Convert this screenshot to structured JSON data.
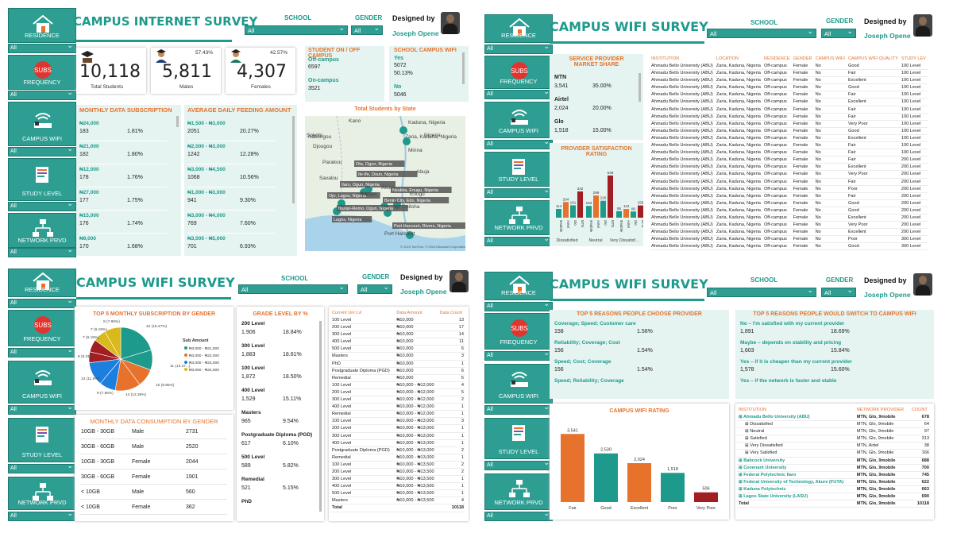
{
  "common": {
    "designer_label": "Designed by",
    "designer_name": "Joseph Opene",
    "school_label": "SCHOOL",
    "gender_label": "GENDER",
    "all": "All",
    "nav": [
      "RESIDENCE",
      "FREQUENCY",
      "CAMPUS WIFI",
      "STUDY LEVEL",
      "NETWORK PRVD"
    ]
  },
  "colors": {
    "teal": "#2e9e93",
    "orange": "#e6722c",
    "dark_red": "#a31e22"
  },
  "p1": {
    "title": "CAMPUS INTERNET SURVEY",
    "kpi": [
      {
        "value": "10,118",
        "label": "Total Students",
        "pct": ""
      },
      {
        "value": "5,811",
        "label": "Males",
        "pct": "57.43%"
      },
      {
        "value": "4,307",
        "label": "Females",
        "pct": "42.57%"
      }
    ],
    "oncampus": {
      "title": "STUDENT ON / OFF CAMPUS",
      "off_label": "Off-campus",
      "off_value": "6597",
      "on_label": "On-campus",
      "on_value": "3521"
    },
    "wifi": {
      "title": "SCHOOL CAMPUS WIFI",
      "yes_label": "Yes",
      "yes_value": "5072",
      "yes_pct": "50.13%",
      "no_label": "No",
      "no_value": "5046"
    },
    "monthly": {
      "title": "MONTHLY DATA SUBSCRIPTION",
      "rows": [
        [
          "₦24,000",
          "183",
          "1.81%"
        ],
        [
          "₦21,000",
          "182",
          "1.80%"
        ],
        [
          "₦12,000",
          "178",
          "1.76%"
        ],
        [
          "₦27,000",
          "177",
          "1.75%"
        ],
        [
          "₦15,000",
          "176",
          "1.74%"
        ],
        [
          "₦9,000",
          "170",
          "1.68%"
        ]
      ]
    },
    "feeding": {
      "title": "AVERAGE DAILY FEEDING AMOUNT",
      "rows": [
        [
          "₦1,500 - ₦3,000",
          "2051",
          "20.27%"
        ],
        [
          "₦2,000 - ₦3,000",
          "1242",
          "12.28%"
        ],
        [
          "₦3,000 - ₦4,500",
          "1068",
          "10.56%"
        ],
        [
          "₦1,000 - ₦3,000",
          "941",
          "9.30%"
        ],
        [
          "₦3,000 - ₦4,000",
          "769",
          "7.60%"
        ],
        [
          "₦3,000 - ₦5,000",
          "701",
          "6.93%"
        ]
      ]
    },
    "map": {
      "title": "Total Students by State",
      "places": [
        "Kano",
        "Kaduna, Nigeria",
        "Zaria, Kaduna, Nigeria",
        "Minna",
        "Abuja",
        "Ota, Ogun, Nigeria",
        "Ile-Ife, Osun, Nigeria",
        "Ilaro, Ogun, Nigeria",
        "Ojo, Lagos, Nigeria",
        "Akure",
        "Nsukka, Enugu, Nigeria",
        "Enugu",
        "Benin City, Edo, Nigeria",
        "Onitsha",
        "Iburan-Remo, Ogun, Nigeria",
        "Lagos, Nigeria",
        "Port Harcourt, Rivers, Nigeria",
        "Port Harcourt",
        "Sokoto",
        "Natitingou",
        "Djougou",
        "Parakou",
        "Savalou",
        "Ibadan",
        "Nigeria"
      ],
      "credit": "© 2024 TomTom, © 2024 Microsoft Corporation"
    }
  },
  "p2": {
    "title": "CAMPUS WIFI SURVEY",
    "share": {
      "title": "SERVICE PROVIDER MARKET SHARE",
      "rows": [
        [
          "MTN",
          "3,541",
          "35.00%"
        ],
        [
          "Airtel",
          "2,024",
          "20.00%"
        ],
        [
          "Glo",
          "1,518",
          "15.00%"
        ]
      ]
    },
    "sat": {
      "title": "PROVIDER SATISFACTION RATING",
      "groups": [
        "Dissatisfied",
        "Neutral",
        "Very Dissatisf..."
      ]
    },
    "table": {
      "headers": [
        "INSTITUTION",
        "LOCATION",
        "RESIDENCE",
        "GENDER",
        "CAMPUS WIFI",
        "CAMPUS WIFI QUALITY",
        "STUDY LEV"
      ],
      "inst": "Ahmadu Bello University (ABU)",
      "loc": "Zaria, Kaduna, Nigeria",
      "rows": [
        [
          "Off-campus",
          "Female",
          "No",
          "Good",
          "100 Level"
        ],
        [
          "Off-campus",
          "Female",
          "No",
          "Fair",
          "100 Level"
        ],
        [
          "Off-campus",
          "Female",
          "No",
          "Excellent",
          "100 Level"
        ],
        [
          "Off-campus",
          "Female",
          "No",
          "Good",
          "100 Level"
        ],
        [
          "Off-campus",
          "Female",
          "No",
          "Fair",
          "100 Level"
        ],
        [
          "Off-campus",
          "Female",
          "No",
          "Excellent",
          "100 Level"
        ],
        [
          "Off-campus",
          "Female",
          "No",
          "Fair",
          "100 Level"
        ],
        [
          "Off-campus",
          "Female",
          "No",
          "Fair",
          "100 Level"
        ],
        [
          "Off-campus",
          "Female",
          "No",
          "Very Poor",
          "100 Level"
        ],
        [
          "Off-campus",
          "Female",
          "No",
          "Good",
          "100 Level"
        ],
        [
          "Off-campus",
          "Female",
          "No",
          "Excellent",
          "100 Level"
        ],
        [
          "Off-campus",
          "Female",
          "No",
          "Fair",
          "100 Level"
        ],
        [
          "Off-campus",
          "Female",
          "No",
          "Fair",
          "100 Level"
        ],
        [
          "Off-campus",
          "Female",
          "No",
          "Fair",
          "200 Level"
        ],
        [
          "Off-campus",
          "Female",
          "No",
          "Excellent",
          "200 Level"
        ],
        [
          "Off-campus",
          "Female",
          "No",
          "Very Poor",
          "200 Level"
        ],
        [
          "Off-campus",
          "Female",
          "No",
          "Fair",
          "200 Level"
        ],
        [
          "Off-campus",
          "Female",
          "No",
          "Poor",
          "200 Level"
        ],
        [
          "Off-campus",
          "Female",
          "No",
          "Fair",
          "200 Level"
        ],
        [
          "Off-campus",
          "Female",
          "No",
          "Good",
          "200 Level"
        ],
        [
          "Off-campus",
          "Female",
          "No",
          "Good",
          "200 Level"
        ],
        [
          "Off-campus",
          "Female",
          "No",
          "Excellent",
          "200 Level"
        ],
        [
          "Off-campus",
          "Female",
          "No",
          "Very Poor",
          "200 Level"
        ],
        [
          "Off-campus",
          "Female",
          "No",
          "Excellent",
          "200 Level"
        ],
        [
          "Off-campus",
          "Female",
          "No",
          "Poor",
          "300 Level"
        ],
        [
          "Off-campus",
          "Female",
          "No",
          "Good",
          "300 Level"
        ]
      ]
    }
  },
  "p3": {
    "title": "CAMPUS WIFI SURVEY",
    "pie": {
      "title": "TOP 5 MONTHLY SUBSCRIPTION BY GENDER",
      "legend_title": "Sub Amount",
      "legend": [
        "₦3,000 - ₦21,000",
        "₦3,000 - ₦22,000",
        "₦3,000 - ₦23,000",
        "₦3,000 - ₦24,000"
      ],
      "labels": [
        "9 (7.96%)",
        "7 (6.19%)",
        "7 (6.19%)",
        "22 (19.47%)",
        "11 (13.27...)",
        "10 (8.85%)",
        "14 (12.39%)",
        "9 (7.96%)",
        "13 (11.5%)",
        "6 (5.31%)"
      ]
    },
    "consume": {
      "title": "MONTHLY DATA CONSUMPTION BY GENDER",
      "rows": [
        [
          "10GB - 30GB",
          "Male",
          "2731"
        ],
        [
          "30GB - 60GB",
          "Male",
          "2520"
        ],
        [
          "10GB - 30GB",
          "Female",
          "2044"
        ],
        [
          "30GB - 60GB",
          "Female",
          "1901"
        ],
        [
          "< 10GB",
          "Male",
          "560"
        ],
        [
          "< 10GB",
          "Female",
          "362"
        ]
      ]
    },
    "grade": {
      "title": "GRADE LEVEL BY %",
      "rows": [
        [
          "200 Level",
          "1,906",
          "18.84%"
        ],
        [
          "300 Level",
          "1,883",
          "18.61%"
        ],
        [
          "100 Level",
          "1,872",
          "18.50%"
        ],
        [
          "400 Level",
          "1,529",
          "15.11%"
        ],
        [
          "Masters",
          "965",
          "9.54%"
        ],
        [
          "Postgraduate Diploma (PGD)",
          "617",
          "6.10%"
        ],
        [
          "500 Level",
          "589",
          "5.82%"
        ],
        [
          "Remedial",
          "521",
          "5.15%"
        ],
        [
          "PhD",
          "",
          ""
        ]
      ]
    },
    "table": {
      "headers": [
        "Current Uni Lvl",
        "Data Amount",
        "Data Count"
      ],
      "rows": [
        [
          "100 Level",
          "₦10,000",
          "13"
        ],
        [
          "200 Level",
          "₦10,000",
          "17"
        ],
        [
          "300 Level",
          "₦10,000",
          "14"
        ],
        [
          "400 Level",
          "₦10,000",
          "11"
        ],
        [
          "500 Level",
          "₦10,000",
          "6"
        ],
        [
          "Masters",
          "₦10,000",
          "3"
        ],
        [
          "PhD",
          "₦10,000",
          "1"
        ],
        [
          "Postgraduate Diploma (PGD)",
          "₦10,000",
          "6"
        ],
        [
          "Remedial",
          "₦10,000",
          "5"
        ],
        [
          "100 Level",
          "₦10,000 - ₦12,000",
          "4"
        ],
        [
          "200 Level",
          "₦10,000 - ₦12,000",
          "5"
        ],
        [
          "300 Level",
          "₦10,000 - ₦12,000",
          "2"
        ],
        [
          "400 Level",
          "₦10,000 - ₦12,000",
          "1"
        ],
        [
          "Remedial",
          "₦10,000 - ₦12,000",
          "1"
        ],
        [
          "100 Level",
          "₦10,000 - ₦13,000",
          "3"
        ],
        [
          "200 Level",
          "₦10,000 - ₦13,000",
          "1"
        ],
        [
          "300 Level",
          "₦10,000 - ₦13,000",
          "1"
        ],
        [
          "400 Level",
          "₦10,000 - ₦13,000",
          "1"
        ],
        [
          "Postgraduate Diploma (PGD)",
          "₦10,000 - ₦13,000",
          "2"
        ],
        [
          "Remedial",
          "₦10,000 - ₦13,000",
          "1"
        ],
        [
          "100 Level",
          "₦10,000 - ₦13,500",
          "2"
        ],
        [
          "200 Level",
          "₦10,000 - ₦13,500",
          "2"
        ],
        [
          "300 Level",
          "₦10,000 - ₦13,500",
          "1"
        ],
        [
          "400 Level",
          "₦10,000 - ₦13,500",
          "1"
        ],
        [
          "500 Level",
          "₦10,000 - ₦13,500",
          "1"
        ],
        [
          "Masters",
          "₦10,000 - ₦13,500",
          "4"
        ]
      ],
      "total_label": "Total",
      "total": "10118"
    }
  },
  "p4": {
    "title": "CAMPUS WIFI SURVEY",
    "reasons": {
      "title": "TOP 5 REASONS PEOPLE CHOOSE PROVIDER",
      "rows": [
        [
          "Coverage; Speed; Customer care",
          "158",
          "1.56%"
        ],
        [
          "Reliability; Coverage; Cost",
          "156",
          "1.54%"
        ],
        [
          "Speed; Cost; Coverage",
          "156",
          "1.54%"
        ],
        [
          "Speed; Reliability; Coverage",
          "",
          ""
        ]
      ]
    },
    "switch": {
      "title": "TOP 5 REASONS PEOPLE WOULD SWITCH TO CAMPUS WIFI",
      "rows": [
        [
          "No – I'm satisfied with my current provider",
          "1,891",
          "18.69%"
        ],
        [
          "Maybe – depends on stability and pricing",
          "1,603",
          "15.84%"
        ],
        [
          "Yes – if it is cheaper than my current provider",
          "1,578",
          "15.60%"
        ],
        [
          "Yes – if the network is faster and stable",
          "",
          ""
        ]
      ]
    },
    "table": {
      "headers": [
        "INSTITUTION",
        "NETWORK PROVIDER",
        "COUNT"
      ],
      "rows": [
        [
          "Ahmadu Bello University (ABU)",
          "MTN, Glo, 9mobile",
          "678",
          "g"
        ],
        [
          "Dissatisfied",
          "MTN, Glo, 9mobile",
          "64",
          "s"
        ],
        [
          "Neutral",
          "MTN, Glo, 9mobile",
          "97",
          "s"
        ],
        [
          "Satisfied",
          "MTN, Glo, 9mobile",
          "313",
          "s"
        ],
        [
          "Very Dissatisfied",
          "MTN, Airtel",
          "38",
          "s"
        ],
        [
          "Very Satisfied",
          "MTN, Glo, 9mobile",
          "166",
          "s"
        ],
        [
          "Babcock University",
          "MTN, Glo, 9mobile",
          "688",
          "g"
        ],
        [
          "Covenant University",
          "MTN, Glo, 9mobile",
          "700",
          "g"
        ],
        [
          "Federal Polytechnic Ilaro",
          "MTN, Glo, 9mobile",
          "745",
          "g"
        ],
        [
          "Federal University of Technology, Akure (FUTA)",
          "MTN, Glo, 9mobile",
          "622",
          "g"
        ],
        [
          "Kaduna Polytechnic",
          "MTN, Glo, 9mobile",
          "663",
          "g"
        ],
        [
          "Lagos State University (LASU)",
          "MTN, Glo, 9mobile",
          "690",
          "g"
        ]
      ],
      "total_label": "Total",
      "total_provider": "MTN, Glo, 9mobile",
      "total": "10118"
    }
  },
  "chart_data": [
    {
      "type": "bar",
      "title": "PROVIDER SATISFACTION RATING",
      "categories": [
        "9mobile",
        "Airtel",
        "Glo",
        "MTN",
        "9mobile",
        "Airtel",
        "Glo",
        "MTN",
        "9mobile",
        "Airtel",
        "Glo",
        "MTN"
      ],
      "groups": [
        "Dissatisfied",
        "Neutral",
        "Very Dissatisf..."
      ],
      "values": [
        114,
        204,
        161,
        342,
        153,
        289,
        220,
        549,
        85,
        113,
        80,
        159
      ],
      "ylim": [
        0,
        600
      ]
    },
    {
      "type": "pie",
      "title": "TOP 5 MONTHLY SUBSCRIPTION BY GENDER",
      "values": [
        22,
        11,
        10,
        14,
        9,
        13,
        6,
        7,
        7,
        9
      ],
      "colors": [
        "#1e9a8c",
        "#1e9a8c",
        "#e6722c",
        "#e6722c",
        "#1b7fe0",
        "#1b7fe0",
        "#a31e22",
        "#a31e22",
        "#d9b91c",
        "#d9b91c"
      ]
    },
    {
      "type": "bar",
      "title": "CAMPUS WIFI RATING",
      "categories": [
        "Fair",
        "Good",
        "Excellent",
        "Poor",
        "Very Poor"
      ],
      "values": [
        3541,
        2530,
        2024,
        1518,
        506
      ],
      "colors": [
        "#e6722c",
        "#1e9a8c",
        "#e6722c",
        "#1e9a8c",
        "#a31e22"
      ],
      "ylim": [
        0,
        3800
      ]
    }
  ]
}
